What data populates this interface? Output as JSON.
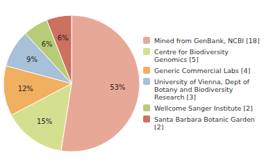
{
  "chart_data": {
    "type": "pie",
    "categories": [
      "Mined from GenBank, NCBI [18]",
      "Centre for Biodiversity\nGenomics [5]",
      "Generic Commercial Labs [4]",
      "University of Vienna, Dept of\nBotany and Biodiversity\nResearch [3]",
      "Wellcome Sanger Institute [2]",
      "Santa Barbara Botanic Garden [2]"
    ],
    "values": [
      53,
      15,
      12,
      9,
      6,
      6
    ],
    "value_labels": [
      "53%",
      "15%",
      "12%",
      "9%",
      "6%",
      "6%"
    ],
    "colors": [
      "#e8a898",
      "#d4e090",
      "#f0b060",
      "#a8c0d8",
      "#b8cc78",
      "#cc7060"
    ],
    "data_labels": true,
    "legend": "right"
  }
}
